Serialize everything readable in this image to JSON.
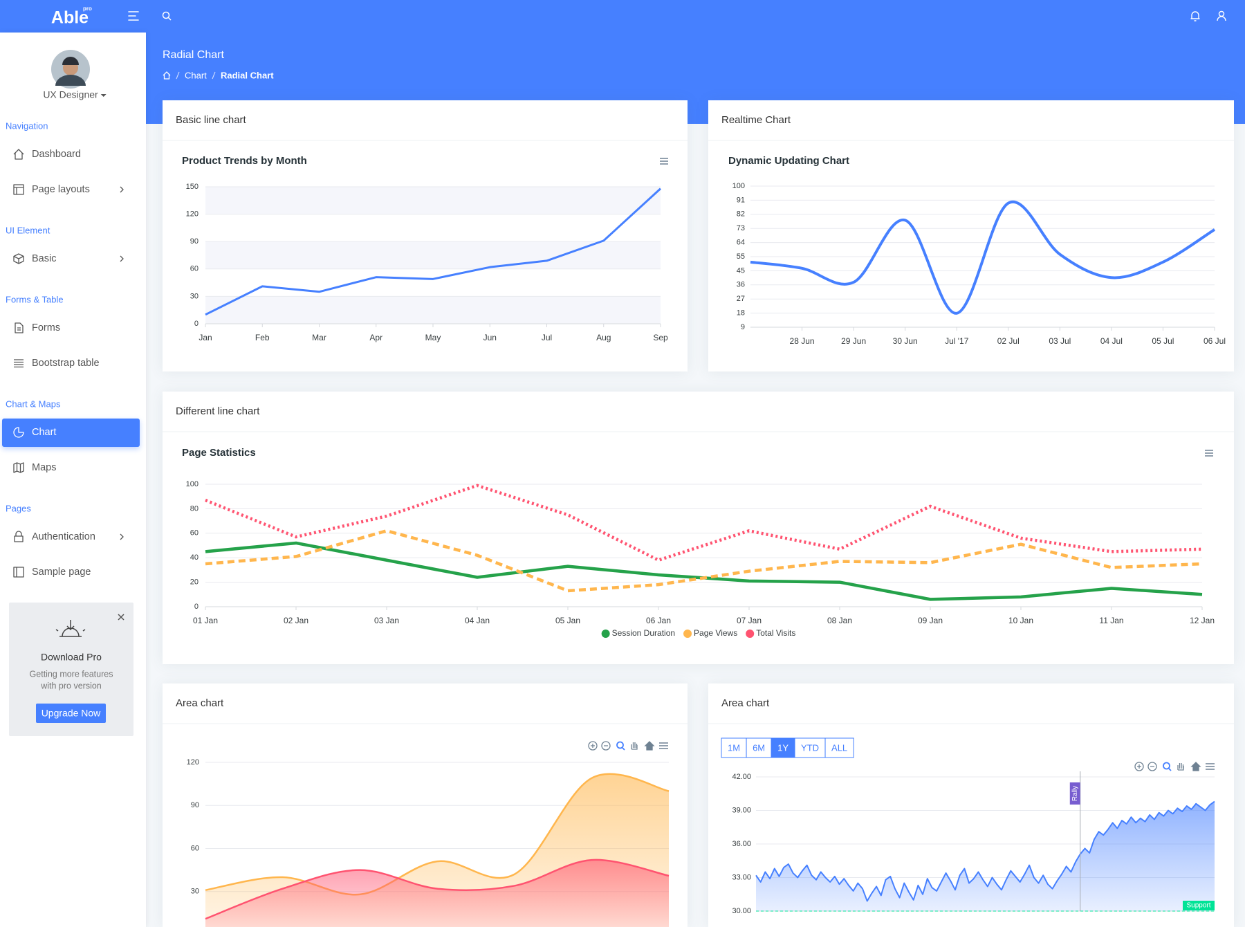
{
  "header": {
    "brand": "Able",
    "brand_badge": "pro",
    "page_title": "Radial Chart",
    "breadcrumb": [
      "Chart",
      "Radial Chart"
    ]
  },
  "sidebar": {
    "user": "UX Designer",
    "sections": [
      {
        "title": "Navigation",
        "items": [
          {
            "label": "Dashboard",
            "submenu": false,
            "active": false
          },
          {
            "label": "Page layouts",
            "submenu": true,
            "active": false
          }
        ]
      },
      {
        "title": "UI Element",
        "items": [
          {
            "label": "Basic",
            "submenu": true,
            "active": false
          }
        ]
      },
      {
        "title": "Forms & Table",
        "items": [
          {
            "label": "Forms",
            "submenu": false,
            "active": false
          },
          {
            "label": "Bootstrap table",
            "submenu": false,
            "active": false
          }
        ]
      },
      {
        "title": "Chart & Maps",
        "items": [
          {
            "label": "Chart",
            "submenu": false,
            "active": true
          },
          {
            "label": "Maps",
            "submenu": false,
            "active": false
          }
        ]
      },
      {
        "title": "Pages",
        "items": [
          {
            "label": "Authentication",
            "submenu": true,
            "active": false
          },
          {
            "label": "Sample page",
            "submenu": false,
            "active": false
          }
        ]
      }
    ],
    "promo": {
      "title": "Download Pro",
      "text": [
        "Getting more features",
        "with pro version"
      ],
      "button": "Upgrade Now"
    }
  },
  "cards": [
    {
      "title": "Basic line chart",
      "chart_data": {
        "type": "line",
        "title": "Product Trends by Month",
        "categories": [
          "Jan",
          "Feb",
          "Mar",
          "Apr",
          "May",
          "Jun",
          "Jul",
          "Aug",
          "Sep"
        ],
        "values": [
          10,
          41,
          35,
          51,
          49,
          62,
          69,
          91,
          148
        ],
        "color": "#4680ff",
        "ylim": [
          0,
          150
        ],
        "yticks": [
          0,
          30,
          60,
          90,
          120,
          150
        ],
        "grid": true,
        "row_bands": true,
        "menu": true
      }
    },
    {
      "title": "Realtime Chart",
      "chart_data": {
        "type": "line",
        "smooth": true,
        "title": "Dynamic Updating Chart",
        "categories": [
          null,
          "28 Jun",
          "29 Jun",
          "30 Jun",
          "Jul '17",
          "02 Jul",
          "03 Jul",
          "04 Jul",
          "05 Jul",
          "06 Jul"
        ],
        "values": [
          51,
          47,
          38,
          78,
          18,
          89,
          56,
          41,
          51,
          72
        ],
        "color": "#4680ff",
        "ylim": [
          9,
          100
        ],
        "yticks": [
          9,
          {
            "value": 18.1,
            "label": "18"
          },
          {
            "value": 27.2,
            "label": "27"
          },
          {
            "value": 36.3,
            "label": "36"
          },
          {
            "value": 45.4,
            "label": "45"
          },
          {
            "value": 54.5,
            "label": "55"
          },
          {
            "value": 63.6,
            "label": "64"
          },
          {
            "value": 72.7,
            "label": "73"
          },
          {
            "value": 81.8,
            "label": "82"
          },
          {
            "value": 90.9,
            "label": "91"
          },
          100
        ],
        "grid": true
      }
    },
    {
      "title": "Different line chart",
      "chart_data": {
        "type": "line",
        "title": "Page Statistics",
        "categories": [
          "01 Jan",
          "02 Jan",
          "03 Jan",
          "04 Jan",
          "05 Jan",
          "06 Jan",
          "07 Jan",
          "08 Jan",
          "09 Jan",
          "10 Jan",
          "11 Jan",
          "12 Jan"
        ],
        "series": [
          {
            "name": "Session Duration",
            "color": "#25a24a",
            "dash": "solid",
            "values": [
              45,
              52,
              38,
              24,
              33,
              26,
              21,
              20,
              6,
              8,
              15,
              10
            ]
          },
          {
            "name": "Page Views",
            "color": "#ffb64d",
            "dash": "dashed",
            "values": [
              35,
              41,
              62,
              42,
              13,
              18,
              29,
              37,
              36,
              51,
              32,
              35
            ]
          },
          {
            "name": "Total Visits",
            "color": "#ff5370",
            "dash": "dotted",
            "values": [
              87,
              57,
              74,
              99,
              75,
              38,
              62,
              47,
              82,
              56,
              45,
              47
            ]
          }
        ],
        "ylim": [
          0,
          100
        ],
        "yticks": [
          0,
          20,
          40,
          60,
          80,
          100
        ],
        "grid": true,
        "legend": "bottom",
        "menu": true
      }
    },
    {
      "title": "Area chart",
      "chart_data": {
        "type": "area",
        "smooth": true,
        "series": [
          {
            "color": "#ffb64d",
            "values": [
              31,
              40,
              28,
              51,
              42,
              109,
              100
            ]
          },
          {
            "color": "#ff5370",
            "values": [
              11,
              32,
              45,
              32,
              34,
              52,
              41
            ]
          }
        ],
        "ylim": [
          0,
          120
        ],
        "yticks": [
          30,
          60,
          90,
          120
        ],
        "grid": true,
        "toolbar": true
      }
    },
    {
      "title": "Area chart",
      "chart_data": {
        "type": "area",
        "range_buttons": [
          "1M",
          "6M",
          "1Y",
          "YTD",
          "ALL"
        ],
        "active_range": "1Y",
        "color": "#4680ff",
        "values": [
          33.2,
          32.6,
          33.5,
          32.9,
          33.8,
          33.1,
          33.9,
          34.2,
          33.4,
          33.0,
          33.6,
          34.1,
          33.2,
          32.8,
          33.5,
          33.0,
          32.6,
          33.1,
          32.4,
          32.9,
          32.3,
          31.8,
          32.5,
          32.0,
          30.9,
          31.6,
          32.2,
          31.4,
          32.8,
          33.1,
          32.0,
          31.2,
          32.5,
          31.7,
          31.0,
          32.3,
          31.5,
          32.9,
          32.1,
          31.8,
          32.6,
          33.4,
          32.7,
          31.9,
          33.2,
          33.8,
          32.5,
          32.9,
          33.5,
          32.8,
          32.2,
          33.0,
          32.4,
          31.9,
          32.8,
          33.6,
          33.1,
          32.6,
          33.3,
          34.1,
          33.0,
          32.5,
          33.2,
          32.4,
          32.0,
          32.7,
          33.3,
          34.0,
          33.5,
          34.4,
          35.1,
          35.6,
          35.2,
          36.4,
          37.1,
          36.8,
          37.3,
          37.9,
          37.4,
          38.1,
          37.8,
          38.4,
          37.9,
          38.3,
          38.0,
          38.6,
          38.2,
          38.8,
          38.5,
          39.0,
          38.7,
          39.2,
          38.9,
          39.4,
          39.1,
          39.6,
          39.3,
          39.0,
          39.5,
          39.8
        ],
        "ylim": [
          30,
          42
        ],
        "yticks": [
          {
            "value": 30,
            "label": "30.00"
          },
          {
            "value": 33,
            "label": "33.00"
          },
          {
            "value": 36,
            "label": "36.00"
          },
          {
            "value": 39,
            "label": "39.00"
          },
          {
            "value": 42,
            "label": "42.00"
          }
        ],
        "grid": true,
        "toolbar": true,
        "annotations": {
          "x": [
            {
              "index": 70,
              "label": "Rally"
            }
          ],
          "y": [
            {
              "value": 30,
              "label": "Support"
            }
          ]
        }
      }
    }
  ]
}
